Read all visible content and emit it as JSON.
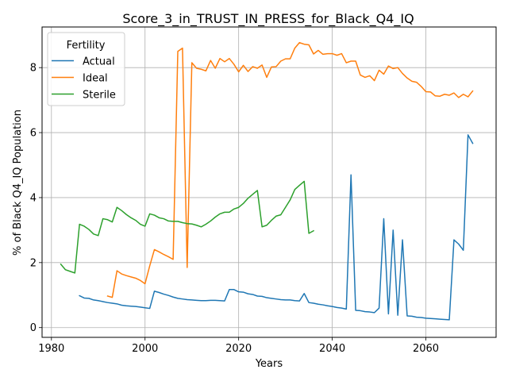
{
  "chart_data": {
    "type": "line",
    "title": "Score_3_in_TRUST_IN_PRESS_for_Black_Q4_IQ",
    "xlabel": "Years",
    "ylabel": "% of Black Q4_IQ Population",
    "xlim": [
      1978,
      2075
    ],
    "ylim": [
      -0.3,
      9.25
    ],
    "xticks": [
      1980,
      2000,
      2020,
      2040,
      2060
    ],
    "yticks": [
      0,
      2,
      4,
      6,
      8
    ],
    "grid": true,
    "legend": {
      "title": "Fertility",
      "placement": "top-left"
    },
    "series": [
      {
        "name": "Actual",
        "color": "#1f77b4",
        "points": [
          [
            1986,
            0.98
          ],
          [
            1987,
            0.91
          ],
          [
            1988,
            0.9
          ],
          [
            1989,
            0.85
          ],
          [
            1990,
            0.83
          ],
          [
            1991,
            0.8
          ],
          [
            1992,
            0.77
          ],
          [
            1993,
            0.75
          ],
          [
            1994,
            0.73
          ],
          [
            1995,
            0.69
          ],
          [
            1996,
            0.67
          ],
          [
            1997,
            0.66
          ],
          [
            1998,
            0.65
          ],
          [
            1999,
            0.63
          ],
          [
            2000,
            0.61
          ],
          [
            2001,
            0.59
          ],
          [
            2002,
            1.12
          ],
          [
            2003,
            1.08
          ],
          [
            2004,
            1.03
          ],
          [
            2005,
            0.99
          ],
          [
            2006,
            0.94
          ],
          [
            2007,
            0.9
          ],
          [
            2008,
            0.88
          ],
          [
            2009,
            0.86
          ],
          [
            2010,
            0.85
          ],
          [
            2011,
            0.84
          ],
          [
            2012,
            0.83
          ],
          [
            2013,
            0.83
          ],
          [
            2014,
            0.84
          ],
          [
            2015,
            0.84
          ],
          [
            2016,
            0.83
          ],
          [
            2017,
            0.82
          ],
          [
            2018,
            1.17
          ],
          [
            2019,
            1.17
          ],
          [
            2020,
            1.1
          ],
          [
            2021,
            1.09
          ],
          [
            2022,
            1.04
          ],
          [
            2023,
            1.02
          ],
          [
            2024,
            0.97
          ],
          [
            2025,
            0.96
          ],
          [
            2026,
            0.92
          ],
          [
            2027,
            0.9
          ],
          [
            2028,
            0.88
          ],
          [
            2029,
            0.86
          ],
          [
            2030,
            0.85
          ],
          [
            2031,
            0.85
          ],
          [
            2032,
            0.83
          ],
          [
            2033,
            0.82
          ],
          [
            2034,
            1.05
          ],
          [
            2035,
            0.77
          ],
          [
            2036,
            0.75
          ],
          [
            2037,
            0.72
          ],
          [
            2038,
            0.7
          ],
          [
            2039,
            0.67
          ],
          [
            2040,
            0.65
          ],
          [
            2041,
            0.62
          ],
          [
            2042,
            0.6
          ],
          [
            2043,
            0.57
          ],
          [
            2044,
            4.7
          ],
          [
            2045,
            0.53
          ],
          [
            2046,
            0.52
          ],
          [
            2047,
            0.49
          ],
          [
            2048,
            0.48
          ],
          [
            2049,
            0.46
          ],
          [
            2050,
            0.6
          ],
          [
            2051,
            3.35
          ],
          [
            2052,
            0.42
          ],
          [
            2053,
            3.0
          ],
          [
            2054,
            0.38
          ],
          [
            2055,
            2.7
          ],
          [
            2056,
            0.36
          ],
          [
            2057,
            0.35
          ],
          [
            2058,
            0.32
          ],
          [
            2059,
            0.31
          ],
          [
            2060,
            0.29
          ],
          [
            2061,
            0.28
          ],
          [
            2062,
            0.27
          ],
          [
            2063,
            0.26
          ],
          [
            2064,
            0.25
          ],
          [
            2065,
            0.24
          ],
          [
            2066,
            2.7
          ],
          [
            2067,
            2.57
          ],
          [
            2068,
            2.38
          ],
          [
            2069,
            5.93
          ],
          [
            2070,
            5.67
          ]
        ]
      },
      {
        "name": "Ideal",
        "color": "#ff7f0e",
        "points": [
          [
            1992,
            0.97
          ],
          [
            1993,
            0.93
          ],
          [
            1994,
            1.75
          ],
          [
            1995,
            1.65
          ],
          [
            1996,
            1.6
          ],
          [
            1997,
            1.56
          ],
          [
            1998,
            1.52
          ],
          [
            1999,
            1.45
          ],
          [
            2000,
            1.35
          ],
          [
            2001,
            1.9
          ],
          [
            2002,
            2.4
          ],
          [
            2003,
            2.33
          ],
          [
            2004,
            2.25
          ],
          [
            2005,
            2.18
          ],
          [
            2006,
            2.1
          ],
          [
            2007,
            8.5
          ],
          [
            2008,
            8.6
          ],
          [
            2009,
            1.85
          ],
          [
            2010,
            8.15
          ],
          [
            2011,
            7.98
          ],
          [
            2012,
            7.95
          ],
          [
            2013,
            7.9
          ],
          [
            2014,
            8.22
          ],
          [
            2015,
            7.98
          ],
          [
            2016,
            8.28
          ],
          [
            2017,
            8.18
          ],
          [
            2018,
            8.28
          ],
          [
            2019,
            8.1
          ],
          [
            2020,
            7.87
          ],
          [
            2021,
            8.07
          ],
          [
            2022,
            7.88
          ],
          [
            2023,
            8.03
          ],
          [
            2024,
            7.98
          ],
          [
            2025,
            8.08
          ],
          [
            2026,
            7.7
          ],
          [
            2027,
            8.02
          ],
          [
            2028,
            8.03
          ],
          [
            2029,
            8.2
          ],
          [
            2030,
            8.27
          ],
          [
            2031,
            8.27
          ],
          [
            2032,
            8.6
          ],
          [
            2033,
            8.77
          ],
          [
            2034,
            8.72
          ],
          [
            2035,
            8.7
          ],
          [
            2036,
            8.42
          ],
          [
            2037,
            8.53
          ],
          [
            2038,
            8.41
          ],
          [
            2039,
            8.43
          ],
          [
            2040,
            8.43
          ],
          [
            2041,
            8.38
          ],
          [
            2042,
            8.43
          ],
          [
            2043,
            8.15
          ],
          [
            2044,
            8.2
          ],
          [
            2045,
            8.2
          ],
          [
            2046,
            7.77
          ],
          [
            2047,
            7.7
          ],
          [
            2048,
            7.75
          ],
          [
            2049,
            7.6
          ],
          [
            2050,
            7.92
          ],
          [
            2051,
            7.8
          ],
          [
            2052,
            8.05
          ],
          [
            2053,
            7.97
          ],
          [
            2054,
            8.0
          ],
          [
            2055,
            7.82
          ],
          [
            2056,
            7.68
          ],
          [
            2057,
            7.58
          ],
          [
            2058,
            7.55
          ],
          [
            2059,
            7.42
          ],
          [
            2060,
            7.26
          ],
          [
            2061,
            7.25
          ],
          [
            2062,
            7.13
          ],
          [
            2063,
            7.12
          ],
          [
            2064,
            7.18
          ],
          [
            2065,
            7.15
          ],
          [
            2066,
            7.22
          ],
          [
            2067,
            7.08
          ],
          [
            2068,
            7.18
          ],
          [
            2069,
            7.1
          ],
          [
            2070,
            7.28
          ]
        ]
      },
      {
        "name": "Sterile",
        "color": "#2ca02c",
        "points": [
          [
            1982,
            1.95
          ],
          [
            1983,
            1.78
          ],
          [
            1984,
            1.73
          ],
          [
            1985,
            1.68
          ],
          [
            1986,
            3.18
          ],
          [
            1987,
            3.12
          ],
          [
            1988,
            3.02
          ],
          [
            1989,
            2.88
          ],
          [
            1990,
            2.83
          ],
          [
            1991,
            3.35
          ],
          [
            1992,
            3.32
          ],
          [
            1993,
            3.25
          ],
          [
            1994,
            3.7
          ],
          [
            1995,
            3.6
          ],
          [
            1996,
            3.48
          ],
          [
            1997,
            3.38
          ],
          [
            1998,
            3.3
          ],
          [
            1999,
            3.18
          ],
          [
            2000,
            3.12
          ],
          [
            2001,
            3.5
          ],
          [
            2002,
            3.46
          ],
          [
            2003,
            3.38
          ],
          [
            2004,
            3.35
          ],
          [
            2005,
            3.28
          ],
          [
            2006,
            3.27
          ],
          [
            2007,
            3.27
          ],
          [
            2008,
            3.23
          ],
          [
            2009,
            3.2
          ],
          [
            2010,
            3.19
          ],
          [
            2011,
            3.15
          ],
          [
            2012,
            3.1
          ],
          [
            2013,
            3.18
          ],
          [
            2014,
            3.28
          ],
          [
            2015,
            3.4
          ],
          [
            2016,
            3.5
          ],
          [
            2017,
            3.55
          ],
          [
            2018,
            3.55
          ],
          [
            2019,
            3.65
          ],
          [
            2020,
            3.7
          ],
          [
            2021,
            3.82
          ],
          [
            2022,
            3.98
          ],
          [
            2023,
            4.1
          ],
          [
            2024,
            4.22
          ],
          [
            2025,
            3.1
          ],
          [
            2026,
            3.15
          ],
          [
            2027,
            3.3
          ],
          [
            2028,
            3.43
          ],
          [
            2029,
            3.47
          ],
          [
            2030,
            3.7
          ],
          [
            2031,
            3.93
          ],
          [
            2032,
            4.25
          ],
          [
            2033,
            4.38
          ],
          [
            2034,
            4.5
          ],
          [
            2035,
            2.9
          ],
          [
            2036,
            2.98
          ]
        ]
      }
    ]
  }
}
